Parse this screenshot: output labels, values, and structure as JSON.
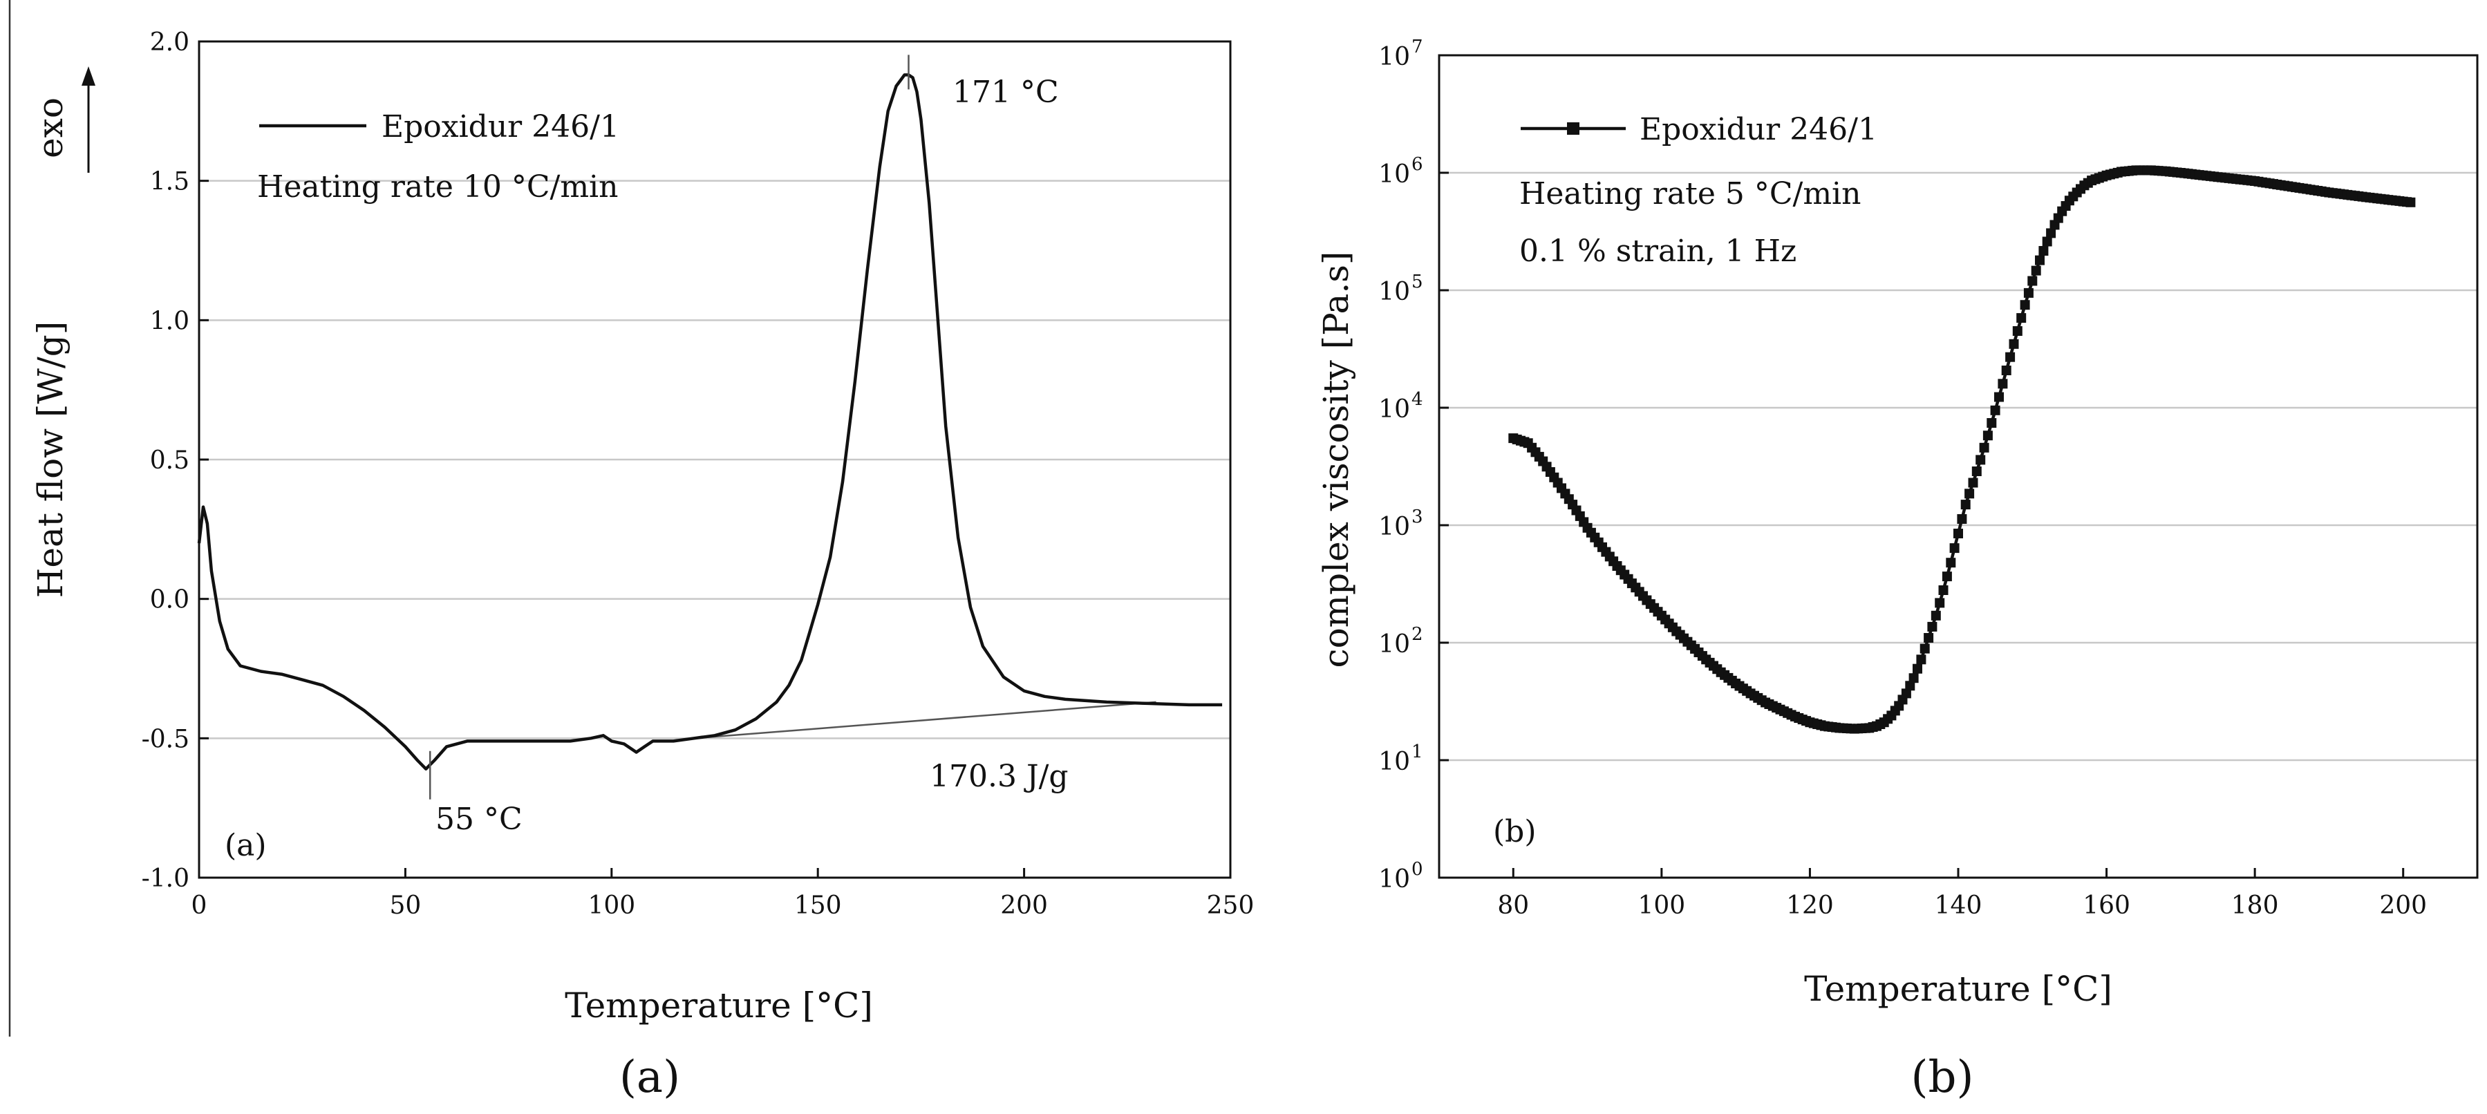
{
  "chart_data": [
    {
      "id": "a",
      "type": "line",
      "xlabel": "Temperature [°C]",
      "ylabel": "Heat flow [W/g]",
      "xlim": [
        0,
        250
      ],
      "ylim": [
        -1.0,
        2.0
      ],
      "xticks": [
        0,
        50,
        100,
        150,
        200,
        250
      ],
      "xtick_labels": [
        "0",
        "50",
        "100",
        "150",
        "200",
        "250"
      ],
      "yticks": [
        -1.0,
        -0.5,
        0.0,
        0.5,
        1.0,
        1.5,
        2.0
      ],
      "ytick_labels": [
        "-1.0",
        "-0.5",
        "0.0",
        "0.5",
        "1.0",
        "1.5",
        "2.0"
      ],
      "grid": true,
      "exo_label": "exo",
      "series": [
        {
          "name": "Epoxidur 246/1",
          "x": [
            0,
            1,
            2,
            3,
            5,
            7,
            10,
            15,
            20,
            25,
            30,
            35,
            40,
            45,
            50,
            53,
            55,
            57,
            60,
            65,
            70,
            80,
            90,
            95,
            98,
            100,
            103,
            106,
            108,
            110,
            115,
            120,
            125,
            130,
            135,
            140,
            143,
            146,
            148,
            150,
            153,
            156,
            159,
            162,
            165,
            167,
            169,
            170,
            171,
            172,
            173,
            174,
            175,
            177,
            179,
            181,
            184,
            187,
            190,
            195,
            200,
            205,
            210,
            220,
            230,
            240,
            248
          ],
          "y": [
            0.2,
            0.33,
            0.27,
            0.1,
            -0.08,
            -0.18,
            -0.24,
            -0.26,
            -0.27,
            -0.29,
            -0.31,
            -0.35,
            -0.4,
            -0.46,
            -0.53,
            -0.58,
            -0.61,
            -0.58,
            -0.53,
            -0.51,
            -0.51,
            -0.51,
            -0.51,
            -0.5,
            -0.49,
            -0.51,
            -0.52,
            -0.55,
            -0.53,
            -0.51,
            -0.51,
            -0.5,
            -0.49,
            -0.47,
            -0.43,
            -0.37,
            -0.31,
            -0.22,
            -0.12,
            -0.02,
            0.15,
            0.42,
            0.78,
            1.18,
            1.55,
            1.75,
            1.84,
            1.86,
            1.88,
            1.88,
            1.87,
            1.82,
            1.72,
            1.42,
            1.02,
            0.62,
            0.22,
            -0.03,
            -0.17,
            -0.28,
            -0.33,
            -0.35,
            -0.36,
            -0.37,
            -0.375,
            -0.38,
            -0.38
          ]
        }
      ],
      "baseline": {
        "x": [
          120,
          232
        ],
        "y": [
          -0.5,
          -0.37
        ]
      },
      "peak_markers": [
        {
          "x": 56,
          "y": -0.62,
          "label": "55 °C"
        },
        {
          "x": 172,
          "y": 1.89,
          "label": "171 °C"
        }
      ],
      "annotations": [
        "Epoxidur 246/1",
        "Heating rate 10 °C/min",
        "170.3 J/g",
        "(a)"
      ],
      "legend": {
        "label": "Epoxidur 246/1",
        "line1": "Heating rate 10 °C/min",
        "location": "top-left"
      },
      "panel_label": "(a)",
      "enthalpy_label": "170.3 J/g"
    },
    {
      "id": "b",
      "type": "scatter",
      "xlabel": "Temperature [°C]",
      "ylabel": "complex viscosity [Pa.s]",
      "xlim": [
        70,
        210
      ],
      "ylim": [
        1,
        10000000
      ],
      "yscale": "log",
      "xticks": [
        80,
        100,
        120,
        140,
        160,
        180,
        200
      ],
      "xtick_labels": [
        "80",
        "100",
        "120",
        "140",
        "160",
        "180",
        "200"
      ],
      "ytick_exponents": [
        0,
        1,
        2,
        3,
        4,
        5,
        6,
        7
      ],
      "ytick_base": "10",
      "grid": true,
      "series": [
        {
          "name": "Epoxidur 246/1",
          "marker": "square",
          "x": [
            80,
            82,
            84,
            86,
            88,
            90,
            92,
            94,
            96,
            98,
            100,
            102,
            104,
            106,
            108,
            110,
            112,
            114,
            116,
            118,
            120,
            122,
            124,
            126,
            128,
            129,
            130,
            131,
            132,
            133,
            134,
            135,
            136,
            137,
            138,
            139,
            140,
            141,
            142,
            143,
            144,
            145,
            146,
            147,
            148,
            149,
            150,
            151,
            152,
            153,
            154,
            155,
            156,
            157,
            158,
            160,
            162,
            164,
            166,
            168,
            170,
            175,
            180,
            185,
            190,
            195,
            201
          ],
          "y": [
            5500,
            5000,
            3500,
            2300,
            1500,
            950,
            650,
            450,
            320,
            230,
            170,
            125,
            95,
            72,
            56,
            45,
            37,
            31,
            27,
            23.5,
            21,
            19.5,
            18.8,
            18.5,
            18.8,
            19.5,
            21,
            24,
            29,
            37,
            50,
            72,
            110,
            170,
            280,
            480,
            850,
            1500,
            2300,
            3600,
            5800,
            9500,
            16000,
            27000,
            45000,
            75000,
            120000,
            180000,
            260000,
            360000,
            470000,
            580000,
            680000,
            780000,
            860000,
            950000,
            1020000,
            1050000,
            1050000,
            1030000,
            1000000,
            920000,
            850000,
            760000,
            680000,
            620000,
            560000
          ]
        }
      ],
      "annotations": [
        "Epoxidur 246/1",
        "Heating rate 5 °C/min",
        "0.1 % strain, 1 Hz",
        "(b)"
      ],
      "legend": {
        "label": "Epoxidur 246/1",
        "line1": "Heating rate 5 °C/min",
        "line2": "0.1 % strain, 1 Hz",
        "location": "top-left"
      },
      "panel_label": "(b)"
    }
  ],
  "captions": {
    "a": "(a)",
    "b": "(b)"
  }
}
